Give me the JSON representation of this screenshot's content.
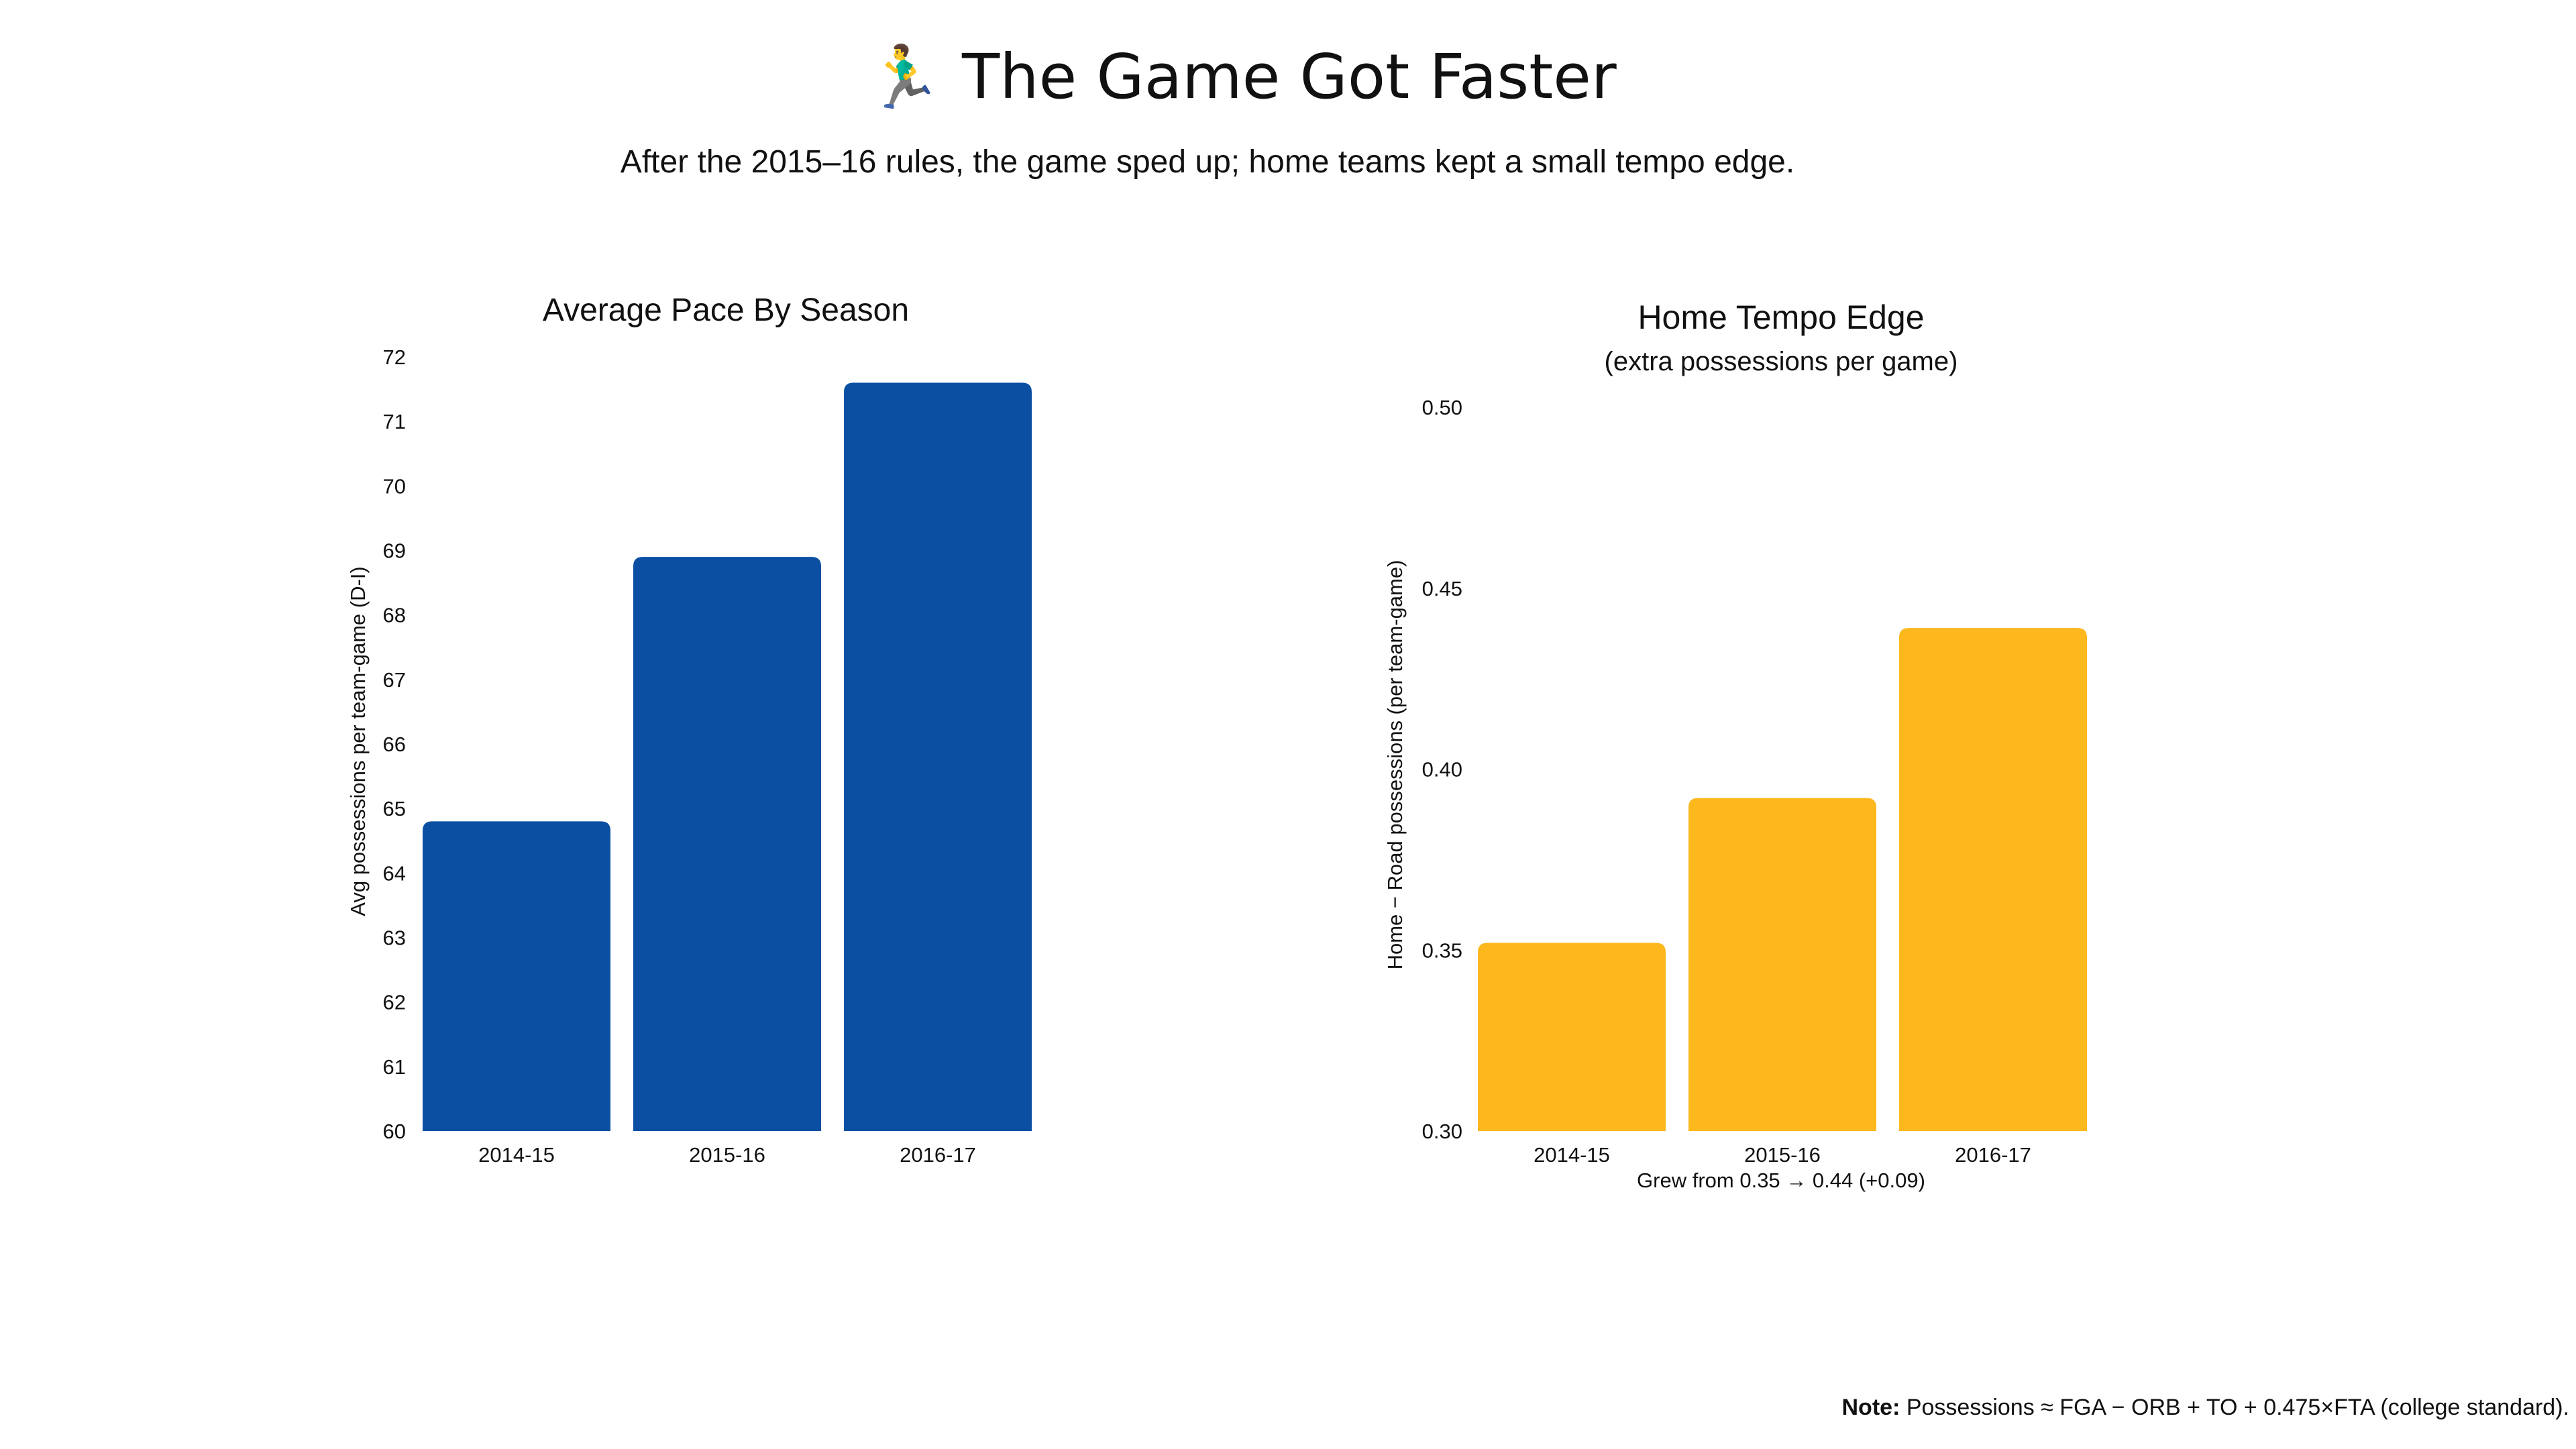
{
  "title": "🏃‍♂️ The Game Got Faster",
  "subtitle": "After the 2015–16 rules, the game sped up; home teams kept a small tempo edge.",
  "note": {
    "label": "Note:",
    "text": "Possessions ≈ FGA − ORB + TO + 0.475×FTA (college standard)."
  },
  "colors": {
    "pace_bar": "#0b4fa3",
    "edge_bar": "#fdb81e"
  },
  "chart_data": [
    {
      "type": "bar",
      "title": "Average Pace By Season",
      "subtitle": "",
      "xlabel": "",
      "ylabel": "Avg possessions per team-game (D-I)",
      "categories": [
        "2014-15",
        "2015-16",
        "2016-17"
      ],
      "values": [
        64.8,
        68.9,
        71.6
      ],
      "ylim": [
        60,
        72
      ],
      "yticks": [
        "60",
        "61",
        "62",
        "63",
        "64",
        "65",
        "66",
        "67",
        "68",
        "69",
        "70",
        "71",
        "72"
      ],
      "grid": false,
      "legend": "none"
    },
    {
      "type": "bar",
      "title": "Home Tempo Edge",
      "subtitle": "(extra possessions per game)",
      "xlabel": "Grew from 0.35 → 0.44 (+0.09)",
      "ylabel": "Home − Road possessions (per team-game)",
      "categories": [
        "2014-15",
        "2015-16",
        "2016-17"
      ],
      "values": [
        0.352,
        0.392,
        0.439
      ],
      "ylim": [
        0.3,
        0.5
      ],
      "yticks": [
        "0.30",
        "0.35",
        "0.40",
        "0.45",
        "0.50"
      ],
      "grid": false,
      "legend": "none"
    }
  ]
}
